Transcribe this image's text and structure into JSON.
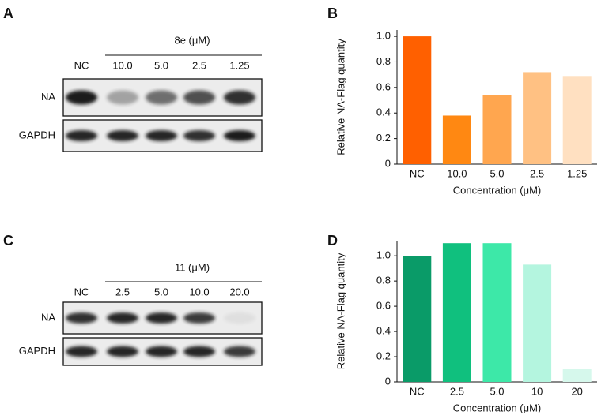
{
  "blots": [
    {
      "panel": "A",
      "treatment": "8e (μM)",
      "lanes": [
        "NC",
        "10.0",
        "5.0",
        "2.5",
        "1.25"
      ],
      "rows": [
        "NA",
        "GAPDH"
      ]
    },
    {
      "panel": "C",
      "treatment": "11 (μM)",
      "lanes": [
        "NC",
        "2.5",
        "5.0",
        "10.0",
        "20.0"
      ],
      "rows": [
        "NA",
        "GAPDH"
      ]
    }
  ],
  "chart_data": [
    {
      "type": "bar",
      "panel": "B",
      "x_label": "Concentration (μM)",
      "y_label": "Relative NA-Flag quantity",
      "categories": [
        "NC",
        "10.0",
        "5.0",
        "2.5",
        "1.25"
      ],
      "values": [
        1.0,
        0.38,
        0.54,
        0.72,
        0.69
      ],
      "colors": [
        "#ff6000",
        "#ff8812",
        "#ffa64f",
        "#ffc183",
        "#ffe0c1"
      ],
      "ylim": [
        0,
        1.05
      ],
      "yticks": [
        0,
        0.2,
        0.4,
        0.6,
        0.8,
        {
          "value": 1,
          "label": "1.0"
        }
      ]
    },
    {
      "type": "bar",
      "panel": "D",
      "x_label": "Concentration (μM)",
      "y_label": "Relative NA-Flag quantity",
      "categories": [
        "NC",
        "2.5",
        "5.0",
        "10",
        "20"
      ],
      "values": [
        1.0,
        1.1,
        1.1,
        0.93,
        0.1
      ],
      "colors": [
        "#0a9b68",
        "#10c07e",
        "#3de8a8",
        "#b4f5df",
        "#d6f8ec"
      ],
      "ylim": [
        0,
        1.12
      ],
      "yticks": [
        0,
        0.2,
        0.4,
        0.6,
        0.8,
        {
          "value": 1,
          "label": "1.0"
        }
      ]
    }
  ]
}
